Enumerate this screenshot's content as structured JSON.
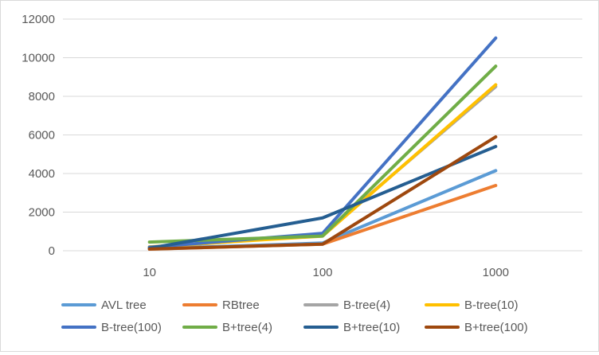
{
  "chart_data": {
    "type": "line",
    "categories": [
      "10",
      "100",
      "1000"
    ],
    "ylim": [
      0,
      12000
    ],
    "yticks": [
      0,
      2000,
      4000,
      6000,
      8000,
      10000,
      12000
    ],
    "grid": "horizontal",
    "legend_position": "bottom",
    "series": [
      {
        "name": "AVL tree",
        "color": "#5b9bd5",
        "values": [
          100,
          400,
          4150
        ]
      },
      {
        "name": "RBtree",
        "color": "#ed7d31",
        "values": [
          80,
          340,
          3380
        ]
      },
      {
        "name": "B-tree(4)",
        "color": "#a5a5a5",
        "values": [
          150,
          830,
          8500
        ]
      },
      {
        "name": "B-tree(10)",
        "color": "#ffc000",
        "values": [
          200,
          760,
          8600
        ]
      },
      {
        "name": "B-tree(100)",
        "color": "#4472c4",
        "values": [
          180,
          900,
          11020
        ]
      },
      {
        "name": "B+tree(4)",
        "color": "#70ad47",
        "values": [
          450,
          760,
          9560
        ]
      },
      {
        "name": "B+tree(10)",
        "color": "#255e91",
        "values": [
          130,
          1700,
          5400
        ]
      },
      {
        "name": "B+tree(100)",
        "color": "#9e480e",
        "values": [
          90,
          340,
          5900
        ]
      }
    ]
  }
}
